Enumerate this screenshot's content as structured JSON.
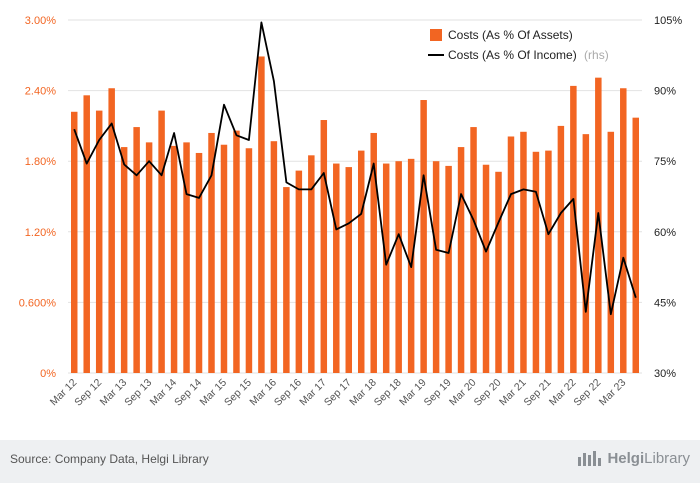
{
  "chart_data": {
    "type": "bar+line",
    "legend": {
      "position": "top-right",
      "bar_label": "Costs (As % Of Assets)",
      "line_label": "Costs (As % Of Income)",
      "line_suffix": "(rhs)"
    },
    "y_left": {
      "ticks": [
        "0%",
        "0.600%",
        "1.20%",
        "1.80%",
        "2.40%",
        "3.00%"
      ],
      "range": [
        0,
        3.0
      ]
    },
    "y_right": {
      "ticks": [
        "30%",
        "45%",
        "60%",
        "75%",
        "90%",
        "105%"
      ],
      "range": [
        30,
        105
      ]
    },
    "x_tick_labels": [
      "Mar 12",
      "Sep 12",
      "Mar 13",
      "Sep 13",
      "Mar 14",
      "Sep 14",
      "Mar 15",
      "Sep 15",
      "Mar 16",
      "Sep 16",
      "Mar 17",
      "Sep 17",
      "Mar 18",
      "Sep 18",
      "Mar 19",
      "Sep 19",
      "Mar 20",
      "Sep 20",
      "Mar 21",
      "Sep 21",
      "Mar 22",
      "Sep 22",
      "Mar 23"
    ],
    "series": [
      {
        "name": "Costs (As % Of Assets)",
        "kind": "bar",
        "color": "#f26522",
        "values": [
          2.22,
          2.36,
          2.23,
          2.42,
          1.92,
          2.09,
          1.96,
          2.23,
          1.93,
          1.96,
          1.87,
          2.04,
          1.94,
          2.06,
          1.91,
          2.69,
          1.97,
          1.58,
          1.72,
          1.85,
          2.15,
          1.78,
          1.75,
          1.89,
          2.04,
          1.78,
          1.8,
          1.82,
          2.32,
          1.8,
          1.76,
          1.92,
          2.09,
          1.77,
          1.71,
          2.01,
          2.05,
          1.88,
          1.89,
          2.1,
          2.44,
          2.03,
          2.51,
          2.05,
          2.42,
          2.17
        ]
      },
      {
        "name": "Costs (As % Of Income)",
        "kind": "line",
        "axis": "right",
        "color": "#000000",
        "values": [
          81.8,
          74.5,
          79.5,
          83.0,
          74.3,
          72.0,
          75.0,
          72.0,
          81.0,
          68.0,
          67.2,
          72.0,
          87.0,
          80.5,
          79.5,
          104.5,
          92.0,
          70.5,
          69.0,
          69.0,
          72.5,
          60.5,
          61.8,
          63.8,
          74.5,
          53.0,
          59.5,
          52.5,
          72.0,
          56.2,
          55.5,
          68.0,
          62.5,
          55.8,
          62.0,
          68.0,
          69.0,
          68.5,
          59.5,
          64.0,
          67.0,
          43.0,
          64.0,
          42.5,
          54.5,
          46.0
        ]
      }
    ]
  },
  "footer": {
    "source": "Source: Company Data, Helgi Library",
    "brand_part1": "Helgi",
    "brand_part2": "Library"
  }
}
